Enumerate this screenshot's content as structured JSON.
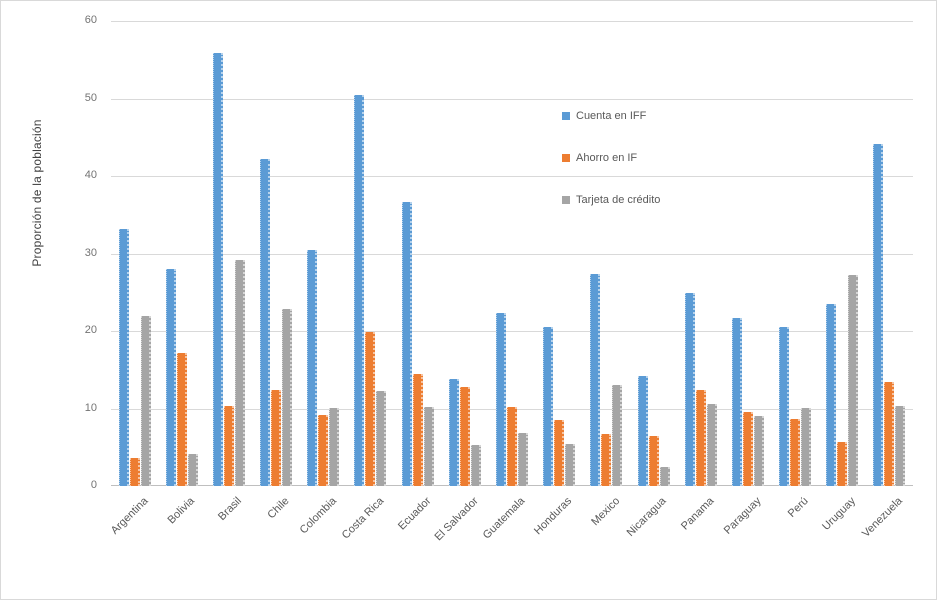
{
  "chart_data": {
    "type": "bar",
    "title": "",
    "xlabel": "",
    "ylabel": "Proporción de la población",
    "ylim": [
      0,
      60
    ],
    "yticks": [
      0,
      10,
      20,
      30,
      40,
      50,
      60
    ],
    "grid": true,
    "legend_position": "inside-upper-right",
    "categories": [
      "Argentina",
      "Bolivia",
      "Brasil",
      "Chile",
      "Colombia",
      "Costa Rica",
      "Ecuador",
      "El Salvador",
      "Guatemala",
      "Honduras",
      "Mexico",
      "Nicaragua",
      "Panama",
      "Paraguay",
      "Perú",
      "Uruguay",
      "Venezuela"
    ],
    "series": [
      {
        "name": "Cuenta en IFF",
        "color": "#5b9bd5",
        "values": [
          33.1,
          28.0,
          55.9,
          42.2,
          30.4,
          50.4,
          36.7,
          13.8,
          22.3,
          20.5,
          27.4,
          14.2,
          24.9,
          21.7,
          20.5,
          23.5,
          44.1
        ]
      },
      {
        "name": "Ahorro en IF",
        "color": "#ed7d31",
        "values": [
          3.6,
          17.1,
          10.3,
          12.4,
          9.2,
          19.9,
          14.4,
          12.8,
          10.2,
          8.5,
          6.7,
          6.5,
          12.4,
          9.6,
          8.6,
          5.7,
          13.4
        ]
      },
      {
        "name": "Tarjeta de crédito",
        "color": "#a5a5a5",
        "values": [
          21.9,
          4.1,
          29.2,
          22.8,
          10.1,
          12.2,
          10.2,
          5.3,
          6.9,
          5.4,
          13.0,
          2.4,
          10.6,
          9.0,
          10.0,
          27.2,
          10.3
        ]
      }
    ]
  },
  "colors": {
    "background": "#ffffff",
    "frame_border": "#d9d9d9",
    "gridline": "#d9d9d9",
    "axis_line": "#bfbfbf",
    "tick_text": "#737373",
    "label_text": "#595959"
  }
}
